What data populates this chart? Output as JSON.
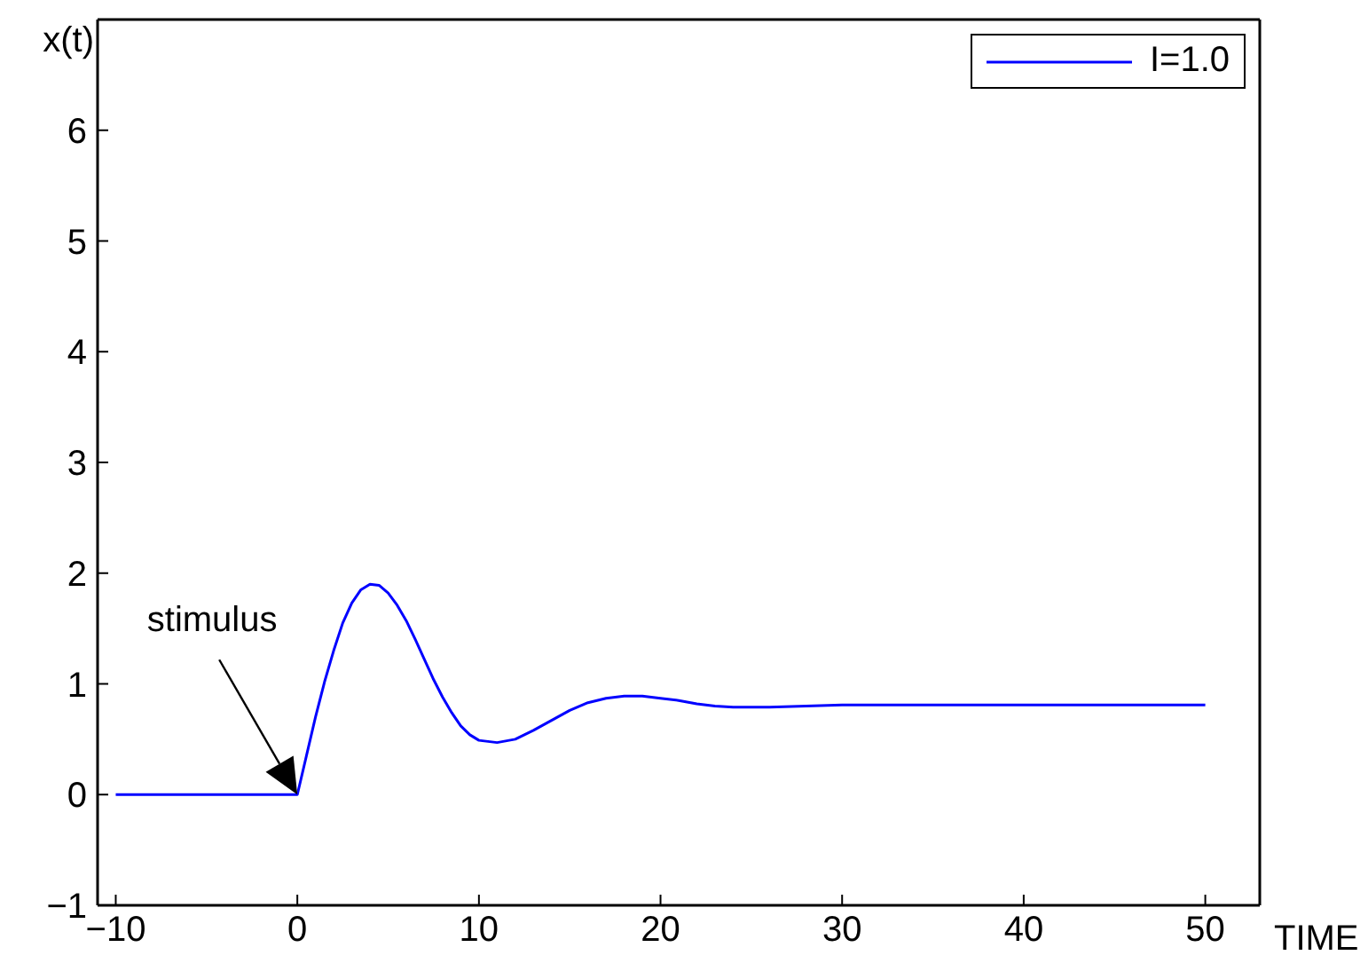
{
  "chart_data": {
    "type": "line",
    "xlabel": "TIME",
    "ylabel": "x(t)",
    "x": [
      -10,
      0,
      0.5,
      1,
      1.5,
      2,
      2.5,
      3,
      3.5,
      4,
      4.5,
      5,
      5.5,
      6,
      6.5,
      7,
      7.5,
      8,
      8.5,
      9,
      9.5,
      10,
      11,
      12,
      13,
      14,
      15,
      16,
      17,
      18,
      19,
      20,
      21,
      22,
      23,
      24,
      25,
      26,
      28,
      30,
      35,
      40,
      45,
      50
    ],
    "series": [
      {
        "name": "I=1.0",
        "color": "#0000ff",
        "values": [
          0,
          0,
          0.35,
          0.7,
          1.02,
          1.3,
          1.55,
          1.73,
          1.85,
          1.9,
          1.89,
          1.82,
          1.71,
          1.57,
          1.4,
          1.22,
          1.04,
          0.88,
          0.74,
          0.62,
          0.54,
          0.49,
          0.47,
          0.5,
          0.58,
          0.67,
          0.76,
          0.83,
          0.87,
          0.89,
          0.89,
          0.87,
          0.85,
          0.82,
          0.8,
          0.79,
          0.79,
          0.79,
          0.8,
          0.81,
          0.81,
          0.81,
          0.81,
          0.81
        ]
      }
    ],
    "xlim": [
      -11,
      53
    ],
    "xticks": [
      -10,
      0,
      10,
      20,
      30,
      40,
      50
    ],
    "ylim": [
      -1,
      7
    ],
    "yticks": [
      -1,
      0,
      1,
      2,
      3,
      4,
      5,
      6,
      {
        "value": 7,
        "label": null
      }
    ],
    "annotations": [
      "stimulus"
    ],
    "legend": "top right",
    "marker": "none",
    "line_style": "solid",
    "grid": false
  }
}
